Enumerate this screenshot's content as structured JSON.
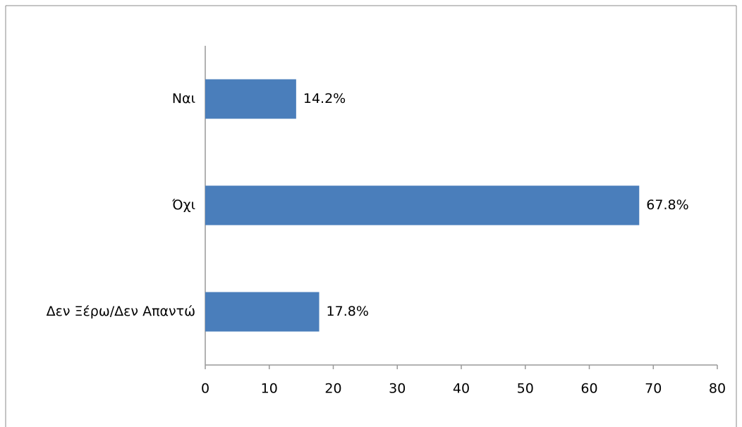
{
  "chart_data": {
    "type": "barh",
    "categories": [
      "Ναι",
      "Όχι",
      "Δεν Ξέρω/Δεν Απαντώ"
    ],
    "values": [
      14.2,
      67.8,
      17.8
    ],
    "value_labels": [
      "14.2%",
      "67.8%",
      "17.8%"
    ],
    "color": "#4a7ebb",
    "xlim": [
      0,
      80
    ],
    "xticks": [
      0,
      10,
      20,
      30,
      40,
      50,
      60,
      70,
      80
    ],
    "grid": false
  }
}
